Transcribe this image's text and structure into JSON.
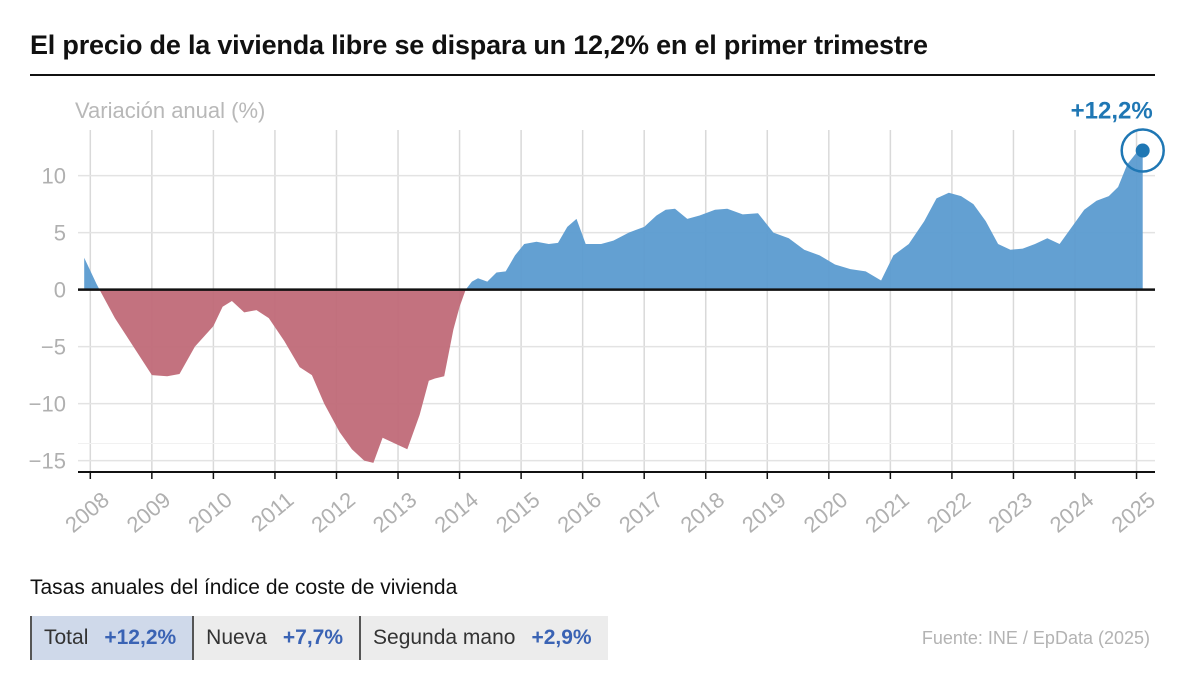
{
  "header": {
    "title": "El precio de la vivienda libre se dispara un 12,2% en el primer trimestre"
  },
  "chart_data": {
    "type": "area",
    "ylabel": "Variación anual (%)",
    "ylim": [
      -16,
      14
    ],
    "yticks": [
      10,
      5,
      0,
      -5,
      -10,
      -15
    ],
    "ytick_labels": [
      "10",
      "5",
      "0",
      "−5",
      "−10",
      "−15"
    ],
    "xlim": [
      2007.8,
      2025.3
    ],
    "xticks": [
      2008,
      2009,
      2010,
      2011,
      2012,
      2013,
      2014,
      2015,
      2016,
      2017,
      2018,
      2019,
      2020,
      2021,
      2022,
      2023,
      2024,
      2025
    ],
    "grid": true,
    "colors": {
      "positive": "#5b9bd0",
      "negative": "#c06a78",
      "accent": "#1f77b4"
    },
    "callout": {
      "label": "+12,2%",
      "x": 2025.1,
      "y": 12.2
    },
    "series": [
      {
        "x": [
          2007.9,
          2008.1,
          2008.4,
          2008.7,
          2009.0,
          2009.25,
          2009.45,
          2009.7,
          2010.0,
          2010.15,
          2010.3,
          2010.5,
          2010.7,
          2010.9,
          2011.15,
          2011.4,
          2011.6,
          2011.8,
          2012.05,
          2012.25,
          2012.45,
          2012.6,
          2012.75,
          2012.95,
          2013.15,
          2013.35,
          2013.5,
          2013.6,
          2013.75,
          2013.9,
          2014.0,
          2014.1,
          2014.2,
          2014.3,
          2014.45,
          2014.6,
          2014.75,
          2014.9,
          2015.05,
          2015.25,
          2015.45,
          2015.6,
          2015.75,
          2015.9,
          2016.05,
          2016.3,
          2016.5,
          2016.75,
          2017.0,
          2017.2,
          2017.35,
          2017.5,
          2017.7,
          2017.9,
          2018.15,
          2018.35,
          2018.6,
          2018.85,
          2019.1,
          2019.35,
          2019.6,
          2019.85,
          2020.1,
          2020.35,
          2020.6,
          2020.85,
          2021.05,
          2021.3,
          2021.55,
          2021.75,
          2021.95,
          2022.15,
          2022.35,
          2022.55,
          2022.75,
          2022.95,
          2023.15,
          2023.35,
          2023.55,
          2023.75,
          2023.95,
          2024.15,
          2024.35,
          2024.55,
          2024.7,
          2024.85,
          2025.0,
          2025.1
        ],
        "y": [
          2.8,
          0.5,
          -2.5,
          -5.0,
          -7.5,
          -7.6,
          -7.4,
          -5.0,
          -3.2,
          -1.5,
          -1.0,
          -2.0,
          -1.8,
          -2.5,
          -4.5,
          -6.8,
          -7.5,
          -10.0,
          -12.5,
          -14.0,
          -15.0,
          -15.2,
          -13.0,
          -13.5,
          -14.0,
          -11.0,
          -8.0,
          -7.8,
          -7.6,
          -3.5,
          -1.5,
          0.0,
          0.7,
          1.0,
          0.7,
          1.5,
          1.6,
          3.0,
          4.0,
          4.2,
          4.0,
          4.1,
          5.5,
          6.2,
          4.0,
          4.0,
          4.3,
          5.0,
          5.5,
          6.5,
          7.0,
          7.1,
          6.2,
          6.5,
          7.0,
          7.1,
          6.6,
          6.7,
          5.0,
          4.5,
          3.5,
          3.0,
          2.2,
          1.8,
          1.6,
          0.8,
          3.0,
          4.0,
          6.0,
          8.0,
          8.5,
          8.2,
          7.5,
          6.0,
          4.0,
          3.5,
          3.6,
          4.0,
          4.5,
          4.0,
          5.5,
          7.0,
          7.8,
          8.2,
          9.0,
          11.0,
          12.0,
          12.2
        ]
      }
    ]
  },
  "footer": {
    "subtitle": "Tasas anuales del índice de coste de vivienda",
    "tabs": [
      {
        "label": "Total",
        "value": "+12,2%"
      },
      {
        "label": "Nueva",
        "value": "+7,7%"
      },
      {
        "label": "Segunda mano",
        "value": "+2,9%"
      }
    ],
    "source": "Fuente: INE / EpData (2025)"
  }
}
